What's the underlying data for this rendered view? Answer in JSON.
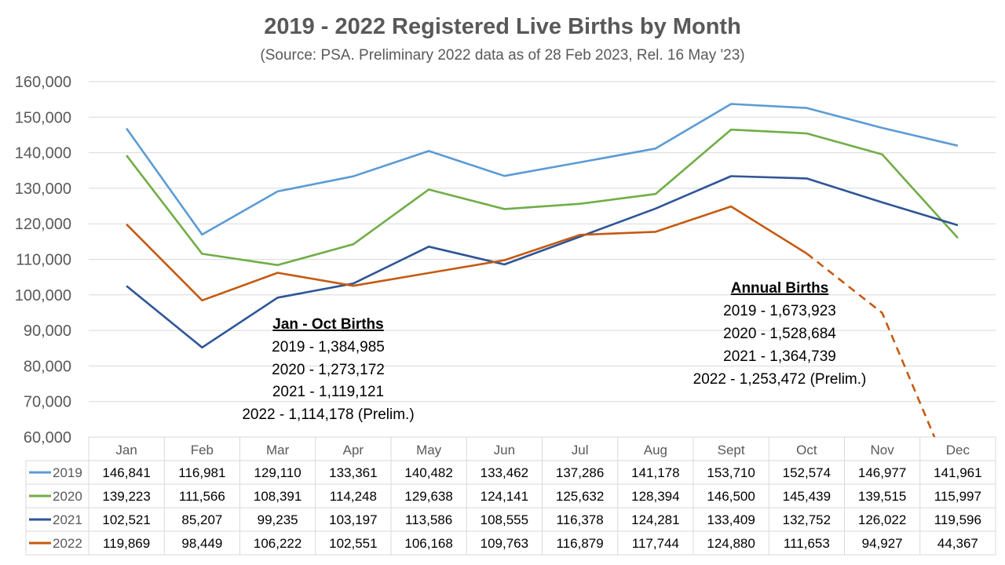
{
  "chart_data": {
    "type": "line",
    "title": "2019 - 2022 Registered Live Births by Month",
    "subtitle": "(Source: PSA. Preliminary 2022 data as of 28 Feb 2023, Rel. 16 May '23)",
    "categories": [
      "Jan",
      "Feb",
      "Mar",
      "Apr",
      "May",
      "Jun",
      "Jul",
      "Aug",
      "Sept",
      "Oct",
      "Nov",
      "Dec"
    ],
    "ylim": [
      60000,
      160000
    ],
    "yticks": [
      60000,
      70000,
      80000,
      90000,
      100000,
      110000,
      120000,
      130000,
      140000,
      150000,
      160000
    ],
    "ytick_labels": [
      "60,000",
      "70,000",
      "80,000",
      "90,000",
      "100,000",
      "110,000",
      "120,000",
      "130,000",
      "140,000",
      "150,000",
      "160,000"
    ],
    "grid": true,
    "legend": "data-table",
    "series": [
      {
        "name": "2019",
        "color": "#5b9bd5",
        "values": [
          146841,
          116981,
          129110,
          133361,
          140482,
          133462,
          137286,
          141178,
          153710,
          152574,
          146977,
          141961
        ],
        "labels": [
          "146,841",
          "116,981",
          "129,110",
          "133,361",
          "140,482",
          "133,462",
          "137,286",
          "141,178",
          "153,710",
          "152,574",
          "146,977",
          "141,961"
        ]
      },
      {
        "name": "2020",
        "color": "#70ad47",
        "values": [
          139223,
          111566,
          108391,
          114248,
          129638,
          124141,
          125632,
          128394,
          146500,
          145439,
          139515,
          115997
        ],
        "labels": [
          "139,223",
          "111,566",
          "108,391",
          "114,248",
          "129,638",
          "124,141",
          "125,632",
          "128,394",
          "146,500",
          "145,439",
          "139,515",
          "115,997"
        ]
      },
      {
        "name": "2021",
        "color": "#2f5597",
        "values": [
          102521,
          85207,
          99235,
          103197,
          113586,
          108555,
          116378,
          124281,
          133409,
          132752,
          126022,
          119596
        ],
        "labels": [
          "102,521",
          "85,207",
          "99,235",
          "103,197",
          "113,586",
          "108,555",
          "116,378",
          "124,281",
          "133,409",
          "132,752",
          "126,022",
          "119,596"
        ]
      },
      {
        "name": "2022",
        "color": "#c55a11",
        "dashed_from_index": 9,
        "values": [
          119869,
          98449,
          106222,
          102551,
          106168,
          109763,
          116879,
          117744,
          124880,
          111653,
          94927,
          44367
        ],
        "labels": [
          "119,869",
          "98,449",
          "106,222",
          "102,551",
          "106,168",
          "109,763",
          "116,879",
          "117,744",
          "124,880",
          "111,653",
          "94,927",
          "44,367"
        ]
      }
    ],
    "annotations": [
      {
        "heading": "Jan - Oct Births",
        "lines": [
          "2019 - 1,384,985",
          "2020 - 1,273,172",
          "2021 - 1,119,121",
          "2022 - 1,114,178 (Prelim.)"
        ]
      },
      {
        "heading": "Annual Births",
        "lines": [
          "2019 - 1,673,923",
          "2020 - 1,528,684",
          "2021 - 1,364,739",
          "2022 - 1,253,472 (Prelim.)"
        ]
      }
    ]
  }
}
